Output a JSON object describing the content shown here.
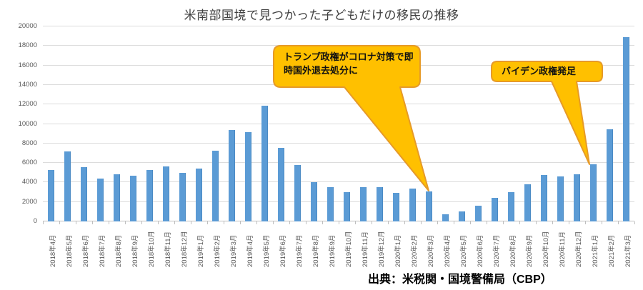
{
  "title": "米南部国境で見つかった子どもだけの移民の推移",
  "source_note": "出典：米税関・国境警備局（CBP）",
  "annotations": [
    {
      "text": "トランプ政権がコロナ対策で即時国外退去処分に",
      "points_to": "2020年3月"
    },
    {
      "text": "バイデン政権発足",
      "points_to": "2021年1月"
    }
  ],
  "colors": {
    "bar": "#5b9bd5",
    "bar_edge": "#4a8ac4",
    "callout_fill": "#ffc000",
    "callout_border": "#e69a28",
    "gridline": "#dcdcdc",
    "axis_line": "#bfbfbf",
    "axis_text": "#595959",
    "title_text": "#404040"
  },
  "chart_data": {
    "type": "bar",
    "title": "米南部国境で見つかった子どもだけの移民の推移",
    "categories": [
      "2018年4月",
      "2018年5月",
      "2018年6月",
      "2018年7月",
      "2018年8月",
      "2018年9月",
      "2018年10月",
      "2018年11月",
      "2018年12月",
      "2019年1月",
      "2019年2月",
      "2019年3月",
      "2019年4月",
      "2019年5月",
      "2019年6月",
      "2019年7月",
      "2019年8月",
      "2019年9月",
      "2019年10月",
      "2019年11月",
      "2019年12月",
      "2020年1月",
      "2020年2月",
      "2020年3月",
      "2020年4月",
      "2020年5月",
      "2020年6月",
      "2020年7月",
      "2020年8月",
      "2020年9月",
      "2020年10月",
      "2020年11月",
      "2020年12月",
      "2021年1月",
      "2021年2月",
      "2021年3月"
    ],
    "values": [
      5300,
      7200,
      5550,
      4400,
      4800,
      4700,
      5300,
      5650,
      5000,
      5400,
      7250,
      9350,
      9150,
      11850,
      7550,
      5800,
      4050,
      3500,
      3000,
      3550,
      3500,
      2950,
      3350,
      3100,
      750,
      1000,
      1600,
      2400,
      3000,
      3800,
      4750,
      4600,
      4850,
      5850,
      9450,
      18900
    ],
    "xlabel": "",
    "ylabel": "",
    "ylim": [
      0,
      20000
    ],
    "yticks": [
      0,
      2000,
      4000,
      6000,
      8000,
      10000,
      12000,
      14000,
      16000,
      18000,
      20000
    ],
    "grid": true,
    "legend_position": "none"
  }
}
